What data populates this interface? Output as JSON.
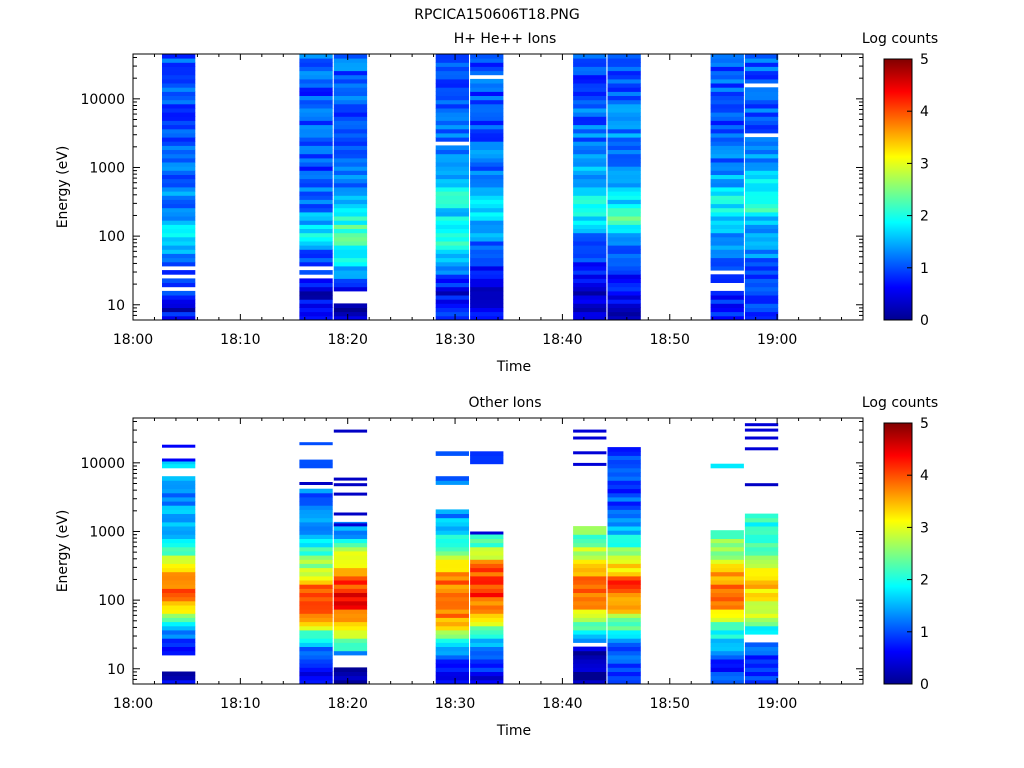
{
  "figure_title": "RPCICA150606T18.PNG",
  "chart_data": [
    {
      "type": "heatmap",
      "title": "H+ He++ Ions",
      "xlabel": "Time",
      "ylabel": "Energy (eV)",
      "y_scale": "log",
      "ylim": [
        6,
        45000
      ],
      "x_range_min": [
        0,
        68
      ],
      "x_ticks": [
        "18:00",
        "18:10",
        "18:20",
        "18:30",
        "18:40",
        "18:50",
        "19:00"
      ],
      "y_ticks": [
        "10",
        "100",
        "1000",
        "10000"
      ],
      "colorbar": {
        "label": "Log counts",
        "range": [
          0,
          5
        ],
        "ticks": [
          "0",
          "1",
          "2",
          "3",
          "4",
          "5"
        ]
      },
      "grid": false,
      "columns": [
        {
          "t_start": 2.7,
          "t_end": 5.8,
          "levels": [
            [
              6,
              1.0
            ],
            [
              9,
              0.3
            ],
            [
              15,
              1.0
            ],
            [
              19,
              0.9
            ],
            [
              27,
              1.1
            ],
            [
              33,
              0.0
            ],
            [
              45,
              1.0
            ],
            [
              65,
              1.4
            ],
            [
              90,
              1.7
            ],
            [
              130,
              1.8
            ],
            [
              180,
              1.5
            ],
            [
              300,
              1.3
            ],
            [
              600,
              1.1
            ],
            [
              2000,
              1.0
            ],
            [
              6000,
              1.0
            ],
            [
              45000,
              1.1
            ]
          ],
          "gaps": [
            [
              15,
              19
            ],
            [
              24,
              27
            ],
            [
              33,
              38
            ]
          ]
        },
        {
          "t_start": 15.5,
          "t_end": 18.6,
          "levels": [
            [
              6,
              1.0
            ],
            [
              15,
              0.3
            ],
            [
              25,
              0.8
            ],
            [
              40,
              1.0
            ],
            [
              60,
              1.2
            ],
            [
              90,
              1.9
            ],
            [
              140,
              1.5
            ],
            [
              300,
              1.2
            ],
            [
              800,
              1.0
            ],
            [
              3000,
              1.1
            ],
            [
              10000,
              1.0
            ],
            [
              45000,
              1.1
            ]
          ],
          "gaps": [
            [
              25,
              28
            ],
            [
              33,
              37
            ]
          ]
        },
        {
          "t_start": 18.7,
          "t_end": 21.8,
          "levels": [
            [
              6,
              0.2
            ],
            [
              10,
              0.0
            ],
            [
              15,
              0.5
            ],
            [
              30,
              1.4
            ],
            [
              60,
              1.9
            ],
            [
              100,
              2.3
            ],
            [
              200,
              1.9
            ],
            [
              400,
              1.4
            ],
            [
              1000,
              1.1
            ],
            [
              4000,
              1.0
            ],
            [
              45000,
              1.1
            ]
          ],
          "gaps": [
            [
              10,
              15
            ]
          ]
        },
        {
          "t_start": 28.2,
          "t_end": 31.3,
          "levels": [
            [
              6,
              0.8
            ],
            [
              15,
              0.5
            ],
            [
              30,
              1.1
            ],
            [
              60,
              1.8
            ],
            [
              100,
              2.0
            ],
            [
              200,
              1.7
            ],
            [
              400,
              1.9
            ],
            [
              900,
              1.3
            ],
            [
              2000,
              1.1
            ],
            [
              8000,
              1.0
            ],
            [
              45000,
              1.0
            ]
          ],
          "gaps": [
            [
              2150,
              2350
            ]
          ]
        },
        {
          "t_start": 31.4,
          "t_end": 34.5,
          "levels": [
            [
              6,
              0.6
            ],
            [
              20,
              0.4
            ],
            [
              50,
              1.0
            ],
            [
              120,
              1.4
            ],
            [
              250,
              1.7
            ],
            [
              600,
              1.3
            ],
            [
              2000,
              1.1
            ],
            [
              8000,
              1.0
            ],
            [
              45000,
              1.0
            ]
          ],
          "gaps": [
            [
              19000,
              21000
            ]
          ]
        },
        {
          "t_start": 41.0,
          "t_end": 44.1,
          "levels": [
            [
              6,
              0.3
            ],
            [
              15,
              0.3
            ],
            [
              40,
              0.7
            ],
            [
              100,
              1.2
            ],
            [
              250,
              1.9
            ],
            [
              600,
              1.6
            ],
            [
              1500,
              1.3
            ],
            [
              5000,
              1.1
            ],
            [
              45000,
              1.0
            ]
          ],
          "gaps": []
        },
        {
          "t_start": 44.2,
          "t_end": 47.3,
          "levels": [
            [
              6,
              0.3
            ],
            [
              20,
              0.6
            ],
            [
              50,
              0.9
            ],
            [
              120,
              1.5
            ],
            [
              180,
              2.6
            ],
            [
              300,
              1.7
            ],
            [
              600,
              1.5
            ],
            [
              2000,
              1.3
            ],
            [
              8000,
              1.1
            ],
            [
              45000,
              1.0
            ]
          ],
          "gaps": []
        },
        {
          "t_start": 53.8,
          "t_end": 56.9,
          "levels": [
            [
              6,
              0.6
            ],
            [
              15,
              0.8
            ],
            [
              30,
              1.0
            ],
            [
              60,
              1.1
            ],
            [
              150,
              1.5
            ],
            [
              300,
              1.9
            ],
            [
              700,
              1.4
            ],
            [
              2000,
              1.1
            ],
            [
              8000,
              1.0
            ],
            [
              45000,
              1.1
            ]
          ],
          "gaps": [
            [
              16,
              20
            ],
            [
              26,
              30
            ]
          ]
        },
        {
          "t_start": 57.0,
          "t_end": 60.1,
          "levels": [
            [
              6,
              1.0
            ],
            [
              25,
              1.1
            ],
            [
              70,
              1.2
            ],
            [
              150,
              1.6
            ],
            [
              300,
              2.1
            ],
            [
              800,
              1.5
            ],
            [
              2500,
              1.2
            ],
            [
              8000,
              1.1
            ],
            [
              45000,
              1.1
            ]
          ],
          "gaps": [
            [
              2900,
              3100
            ],
            [
              15500,
              16500
            ]
          ]
        }
      ]
    },
    {
      "type": "heatmap",
      "title": "Other Ions",
      "xlabel": "Time",
      "ylabel": "Energy (eV)",
      "y_scale": "log",
      "ylim": [
        6,
        45000
      ],
      "x_range_min": [
        0,
        68
      ],
      "x_ticks": [
        "18:00",
        "18:10",
        "18:20",
        "18:30",
        "18:40",
        "18:50",
        "19:00"
      ],
      "y_ticks": [
        "10",
        "100",
        "1000",
        "10000"
      ],
      "colorbar": {
        "label": "Log counts",
        "range": [
          0,
          5
        ],
        "ticks": [
          "0",
          "1",
          "2",
          "3",
          "4",
          "5"
        ]
      },
      "grid": false,
      "columns": [
        {
          "t_start": 2.7,
          "t_end": 5.8,
          "levels": [
            [
              6,
              0.4
            ],
            [
              9,
              null
            ],
            [
              15,
              0.7
            ],
            [
              25,
              0.9
            ],
            [
              35,
              1.4
            ],
            [
              50,
              2.3
            ],
            [
              80,
              3.4
            ],
            [
              150,
              4.0
            ],
            [
              250,
              3.6
            ],
            [
              450,
              2.5
            ],
            [
              850,
              1.4
            ],
            [
              6000,
              null
            ],
            [
              8000,
              1.6
            ],
            [
              11500,
              null
            ],
            [
              17500,
              null
            ]
          ],
          "gaps": [],
          "lines": [
            [
              11000,
              0.6
            ],
            [
              17500,
              0.6
            ]
          ]
        },
        {
          "t_start": 15.5,
          "t_end": 18.6,
          "levels": [
            [
              6,
              0.5
            ],
            [
              15,
              0.8
            ],
            [
              25,
              1.6
            ],
            [
              40,
              2.8
            ],
            [
              70,
              3.8
            ],
            [
              110,
              4.2
            ],
            [
              180,
              3.6
            ],
            [
              400,
              2.4
            ],
            [
              1000,
              1.5
            ],
            [
              2500,
              1.1
            ],
            [
              4200,
              null
            ],
            [
              8000,
              1.2
            ],
            [
              11000,
              null
            ],
            [
              19000,
              null
            ]
          ],
          "gaps": [],
          "lines": [
            [
              19000,
              1.0
            ],
            [
              5000,
              0.3
            ]
          ]
        },
        {
          "t_start": 18.7,
          "t_end": 21.8,
          "levels": [
            [
              6,
              0.2
            ],
            [
              10,
              null
            ],
            [
              15,
              1.2
            ],
            [
              30,
              2.8
            ],
            [
              60,
              3.9
            ],
            [
              100,
              4.4
            ],
            [
              250,
              3.8
            ],
            [
              550,
              2.5
            ],
            [
              1000,
              1.3
            ],
            [
              1300,
              null
            ]
          ],
          "gaps": [],
          "lines": [
            [
              1250,
              0.4
            ],
            [
              1800,
              0.3
            ],
            [
              3500,
              0.3
            ],
            [
              4800,
              0.3
            ],
            [
              5800,
              0.3
            ],
            [
              29000,
              0.3
            ]
          ]
        },
        {
          "t_start": 28.2,
          "t_end": 31.3,
          "levels": [
            [
              6,
              0.3
            ],
            [
              15,
              1.0
            ],
            [
              25,
              2.0
            ],
            [
              45,
              3.4
            ],
            [
              90,
              4.1
            ],
            [
              200,
              3.8
            ],
            [
              500,
              2.6
            ],
            [
              1000,
              1.7
            ],
            [
              2100,
              1.3
            ],
            [
              2200,
              null
            ],
            [
              5000,
              1.3
            ],
            [
              6000,
              null
            ],
            [
              12000,
              1.1
            ],
            [
              15500,
              null
            ]
          ],
          "gaps": []
        },
        {
          "t_start": 31.4,
          "t_end": 34.5,
          "levels": [
            [
              6,
              0.5
            ],
            [
              20,
              1.0
            ],
            [
              40,
              2.6
            ],
            [
              80,
              3.8
            ],
            [
              150,
              4.2
            ],
            [
              300,
              3.8
            ],
            [
              700,
              2.2
            ],
            [
              950,
              null
            ],
            [
              9500,
              1.0
            ],
            [
              14000,
              null
            ]
          ],
          "gaps": [],
          "lines": [
            [
              950,
              0.4
            ]
          ]
        },
        {
          "t_start": 41.0,
          "t_end": 44.1,
          "levels": [
            [
              6,
              0.2
            ],
            [
              20,
              null
            ],
            [
              25,
              1.0
            ],
            [
              40,
              2.3
            ],
            [
              70,
              3.3
            ],
            [
              130,
              4.0
            ],
            [
              300,
              3.6
            ],
            [
              700,
              2.4
            ],
            [
              1250,
              null
            ]
          ],
          "gaps": [],
          "lines": [
            [
              9500,
              0.4
            ],
            [
              14000,
              0.4
            ],
            [
              23000,
              0.4
            ],
            [
              29000,
              0.4
            ]
          ]
        },
        {
          "t_start": 44.2,
          "t_end": 47.3,
          "levels": [
            [
              6,
              0.6
            ],
            [
              25,
              1.3
            ],
            [
              50,
              2.6
            ],
            [
              90,
              3.6
            ],
            [
              160,
              4.2
            ],
            [
              350,
              3.0
            ],
            [
              1000,
              1.5
            ],
            [
              1600,
              1.4
            ],
            [
              2500,
              1.0
            ],
            [
              17000,
              null
            ]
          ],
          "gaps": []
        },
        {
          "t_start": 53.8,
          "t_end": 56.9,
          "levels": [
            [
              6,
              0.8
            ],
            [
              15,
              1.0
            ],
            [
              40,
              2.3
            ],
            [
              80,
              3.6
            ],
            [
              200,
              3.7
            ],
            [
              500,
              2.4
            ],
            [
              1050,
              null
            ],
            [
              8800,
              1.5
            ],
            [
              9800,
              null
            ]
          ],
          "gaps": []
        },
        {
          "t_start": 57.0,
          "t_end": 60.1,
          "levels": [
            [
              6,
              1.0
            ],
            [
              25,
              null
            ],
            [
              30,
              1.2
            ],
            [
              50,
              2.6
            ],
            [
              120,
              3.4
            ],
            [
              300,
              3.0
            ],
            [
              800,
              2.1
            ],
            [
              1800,
              null
            ]
          ],
          "gaps": [],
          "lines": [
            [
              4800,
              0.3
            ],
            [
              16000,
              0.4
            ],
            [
              23000,
              0.4
            ],
            [
              30000,
              0.4
            ],
            [
              36000,
              0.4
            ]
          ]
        }
      ]
    }
  ]
}
